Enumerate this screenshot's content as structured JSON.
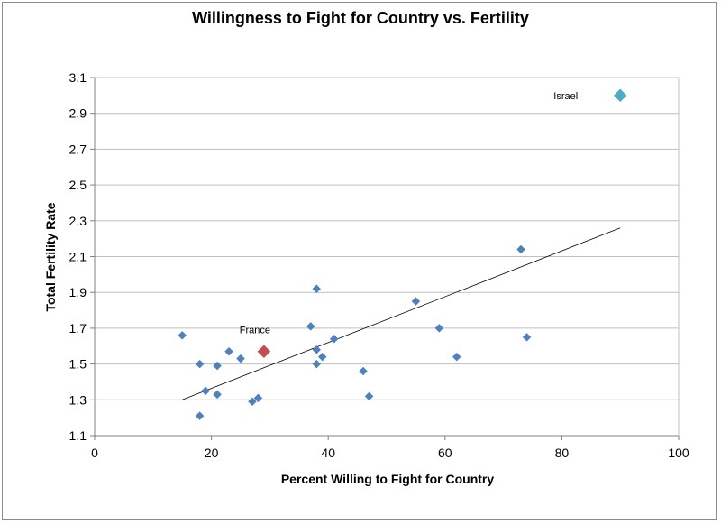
{
  "chart_data": {
    "type": "scatter",
    "title": "Willingness to Fight for Country vs. Fertility",
    "xlabel": "Percent Willing to Fight for Country",
    "ylabel": "Total Fertility Rate",
    "xlim": [
      0,
      100
    ],
    "ylim": [
      1.1,
      3.1
    ],
    "x_ticks": [
      "0",
      "20",
      "40",
      "60",
      "80",
      "100"
    ],
    "y_ticks": [
      "1.1",
      "1.3",
      "1.5",
      "1.7",
      "1.9",
      "2.1",
      "2.3",
      "2.5",
      "2.7",
      "2.9",
      "3.1"
    ],
    "grid": "horizontal",
    "legend": "none",
    "colors": {
      "default": "#4f81bd",
      "france": "#c0504d",
      "israel": "#4bacc6",
      "trendline": "#000000",
      "grid": "#bfbfbf"
    },
    "points": [
      {
        "x": 15,
        "y": 1.66
      },
      {
        "x": 18,
        "y": 1.5
      },
      {
        "x": 18,
        "y": 1.21
      },
      {
        "x": 19,
        "y": 1.35
      },
      {
        "x": 21,
        "y": 1.49
      },
      {
        "x": 21,
        "y": 1.33
      },
      {
        "x": 23,
        "y": 1.57
      },
      {
        "x": 25,
        "y": 1.53
      },
      {
        "x": 27,
        "y": 1.29
      },
      {
        "x": 28,
        "y": 1.31
      },
      {
        "x": 37,
        "y": 1.71
      },
      {
        "x": 38,
        "y": 1.92
      },
      {
        "x": 38,
        "y": 1.58
      },
      {
        "x": 38,
        "y": 1.5
      },
      {
        "x": 39,
        "y": 1.54
      },
      {
        "x": 41,
        "y": 1.64
      },
      {
        "x": 46,
        "y": 1.46
      },
      {
        "x": 47,
        "y": 1.32
      },
      {
        "x": 55,
        "y": 1.85
      },
      {
        "x": 59,
        "y": 1.7
      },
      {
        "x": 62,
        "y": 1.54
      },
      {
        "x": 73,
        "y": 2.14
      },
      {
        "x": 74,
        "y": 1.65
      }
    ],
    "highlighted": [
      {
        "label": "France",
        "x": 29,
        "y": 1.57,
        "color": "france"
      },
      {
        "label": "Israel",
        "x": 90,
        "y": 3.0,
        "color": "israel"
      }
    ],
    "trendline": {
      "x": [
        15,
        90
      ],
      "y": [
        1.3,
        2.26
      ]
    }
  }
}
